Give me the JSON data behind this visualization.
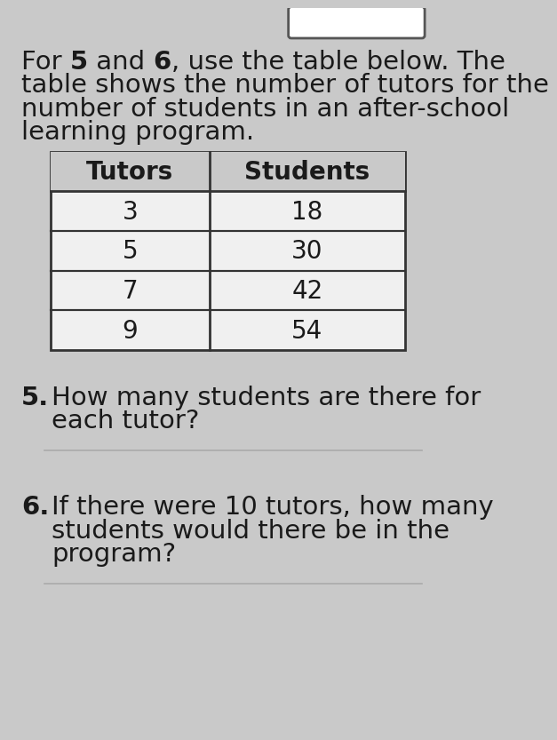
{
  "page_background": "#c9c9c9",
  "table_bg": "#f0f0f0",
  "table_border_color": "#333333",
  "table_header_bg": "#c9c9c9",
  "text_color": "#1a1a1a",
  "line_color": "#aaaaaa",
  "top_box_color": "#ffffff",
  "table_headers": [
    "Tutors",
    "Students"
  ],
  "table_data": [
    [
      "3",
      "18"
    ],
    [
      "5",
      "30"
    ],
    [
      "7",
      "42"
    ],
    [
      "9",
      "54"
    ]
  ],
  "font_size_intro": 21,
  "font_size_table_header": 20,
  "font_size_table_data": 20,
  "font_size_question_num": 21,
  "font_size_question_text": 21,
  "intro_lines": [
    [
      "For ",
      "bold",
      "5",
      "normal",
      " and ",
      "bold",
      "6",
      "normal",
      ", use the table below. The"
    ],
    [
      "table shows the number of tutors for the"
    ],
    [
      "number of students in an after-school"
    ],
    [
      "learning program."
    ]
  ],
  "q5_num": "5.",
  "q5_lines": [
    "How many students are there for",
    "each tutor?"
  ],
  "q6_num": "6.",
  "q6_lines": [
    "If there were 10 tutors, how many",
    "students would there be in the",
    "program?"
  ]
}
